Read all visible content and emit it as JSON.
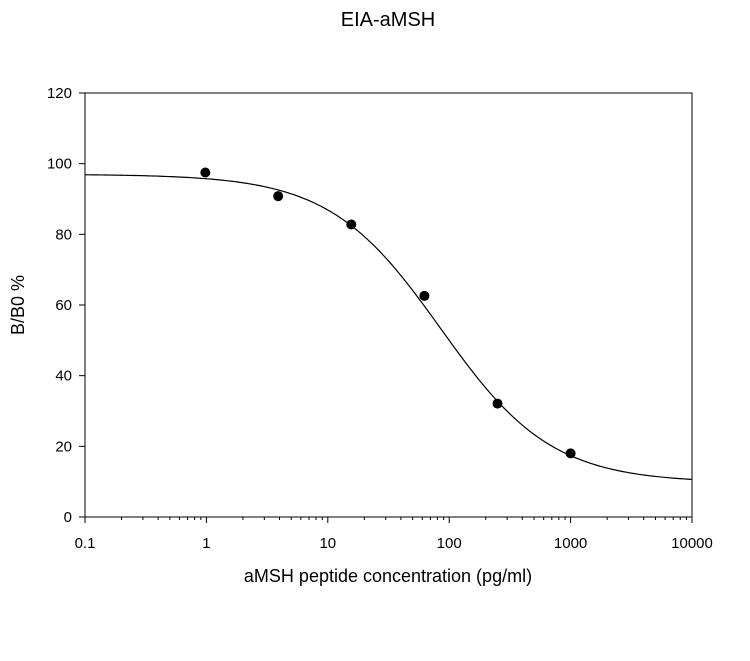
{
  "chart_data": {
    "type": "scatter",
    "title": "EIA-aMSH",
    "xlabel": "aMSH peptide concentration (pg/ml)",
    "ylabel": "B/B0 %",
    "x_scale": "log",
    "xlim": [
      0.1,
      10000
    ],
    "ylim": [
      0,
      120
    ],
    "x_ticks": [
      0.1,
      1,
      10,
      100,
      1000,
      10000
    ],
    "x_tick_labels": [
      "0.1",
      "1",
      "10",
      "100",
      "1000",
      "10000"
    ],
    "y_ticks": [
      0,
      20,
      40,
      60,
      80,
      100,
      120
    ],
    "y_tick_labels": [
      "0",
      "20",
      "40",
      "60",
      "80",
      "100",
      "120"
    ],
    "grid": false,
    "legend": "none",
    "series": [
      {
        "x": [
          0.98,
          3.9,
          15.6,
          62.5,
          250,
          1000
        ],
        "y": [
          97.5,
          90.8,
          82.8,
          62.6,
          32.1,
          18.0
        ]
      }
    ],
    "fit_curve": {
      "model": "4-parameter logistic",
      "top": 97,
      "bottom": 9.7,
      "ec50": 85,
      "hill": 0.95
    },
    "colors": {
      "points": "#000000",
      "curve": "#000000",
      "axes": "#000000"
    }
  }
}
